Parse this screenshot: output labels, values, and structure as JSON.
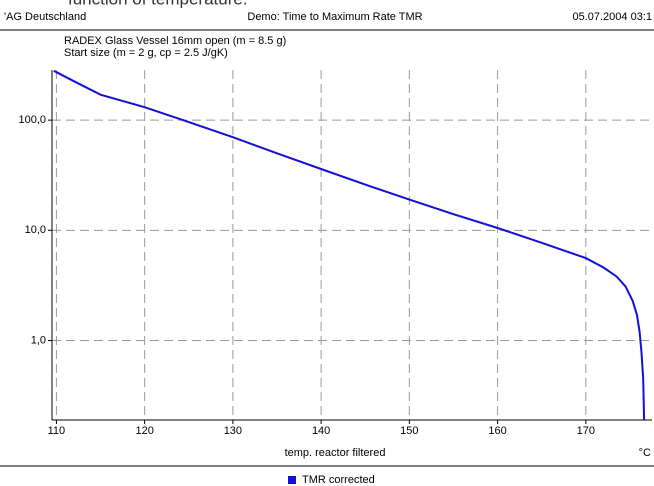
{
  "top_text": "function of temperature.",
  "header": {
    "left": "'AG Deutschland",
    "center": "Demo: Time to Maximum Rate TMR",
    "right": "05.07.2004 03:1"
  },
  "chart_data": {
    "type": "line",
    "subtitle": [
      "RADEX Glass Vessel 16mm open (m = 8.5 g)",
      "Start size (m = 2 g, cp = 2.5 J/gK)"
    ],
    "x_label": "temp. reactor filtered",
    "x_unit": "°C",
    "log_y": true,
    "grid": true,
    "legend": "bottom",
    "xlim": [
      109.5,
      177.5
    ],
    "ylim": [
      0.19,
      285
    ],
    "xticks": [
      110,
      120,
      130,
      140,
      150,
      160,
      170
    ],
    "yticks": [
      {
        "value": 1,
        "label": "1,0"
      },
      {
        "value": 10,
        "label": "10,0"
      },
      {
        "value": 100,
        "label": "100,0"
      }
    ],
    "x": [
      109.7,
      112,
      115,
      120,
      125,
      130,
      135,
      140,
      145,
      150,
      155,
      160,
      165,
      170,
      172,
      173.5,
      174.5,
      175.3,
      175.8,
      176.1,
      176.3,
      176.5,
      176.6
    ],
    "series": [
      {
        "name": "TMR corrected",
        "color": "#1010d8",
        "values": [
          280,
          225,
          170,
          131,
          96,
          70,
          50,
          36,
          26,
          19,
          14,
          10.5,
          7.7,
          5.6,
          4.6,
          3.8,
          3.1,
          2.3,
          1.7,
          1.2,
          0.8,
          0.45,
          0.19
        ]
      }
    ]
  }
}
